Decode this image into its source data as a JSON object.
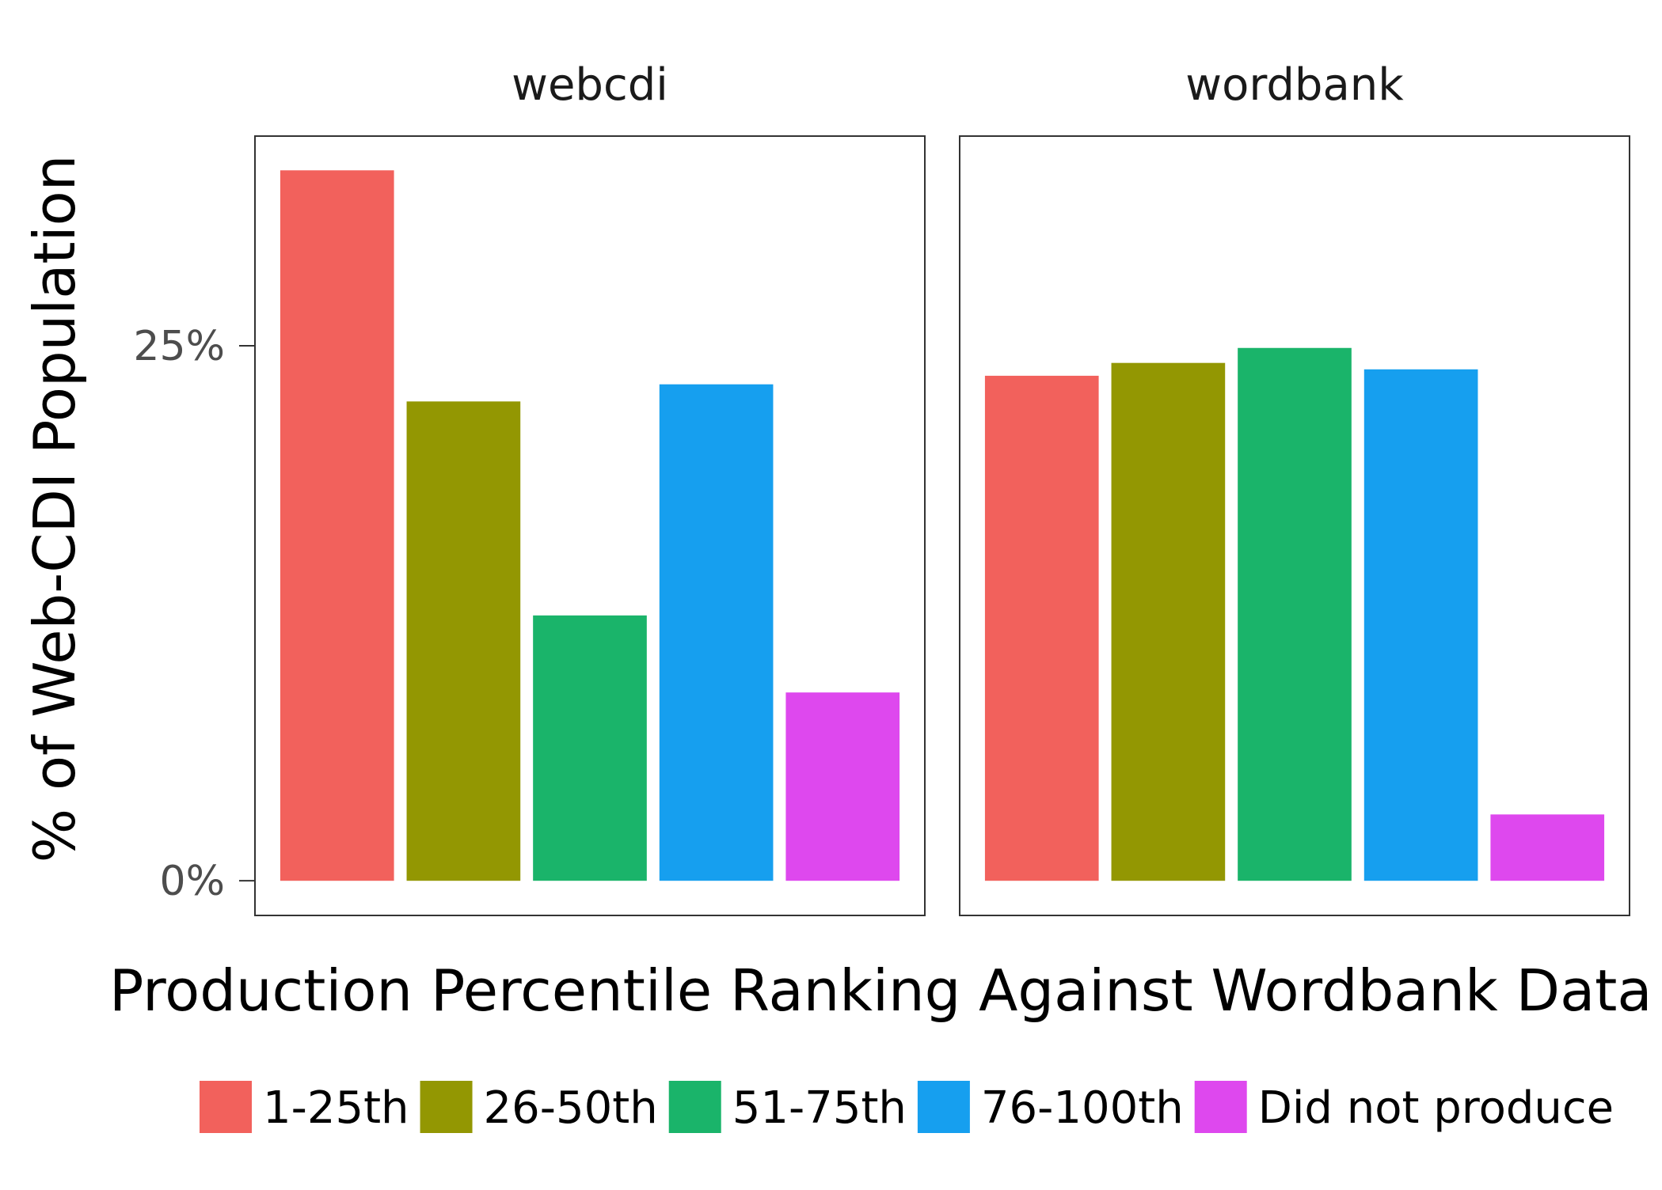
{
  "chart_data": {
    "type": "bar",
    "facets": [
      "webcdi",
      "wordbank"
    ],
    "categories": [
      "1-25th",
      "26-50th",
      "51-75th",
      "76-100th",
      "Did not produce"
    ],
    "colors": [
      "#F2615C",
      "#939702",
      "#1AB46A",
      "#169FEF",
      "#DE48EE"
    ],
    "series": [
      {
        "facet": "webcdi",
        "values": [
          33.2,
          22.4,
          12.4,
          23.2,
          8.8
        ]
      },
      {
        "facet": "wordbank",
        "values": [
          23.6,
          24.2,
          24.9,
          23.9,
          3.1
        ]
      }
    ],
    "xlabel": "Production Percentile Ranking Against Wordbank Data",
    "ylabel": "% of Web-CDI Population",
    "y_ticks": [
      0,
      25
    ],
    "y_tick_labels": [
      "0%",
      "25%"
    ],
    "ylim": [
      -1.62,
      34.8
    ],
    "legend_position": "bottom",
    "grid": false
  }
}
